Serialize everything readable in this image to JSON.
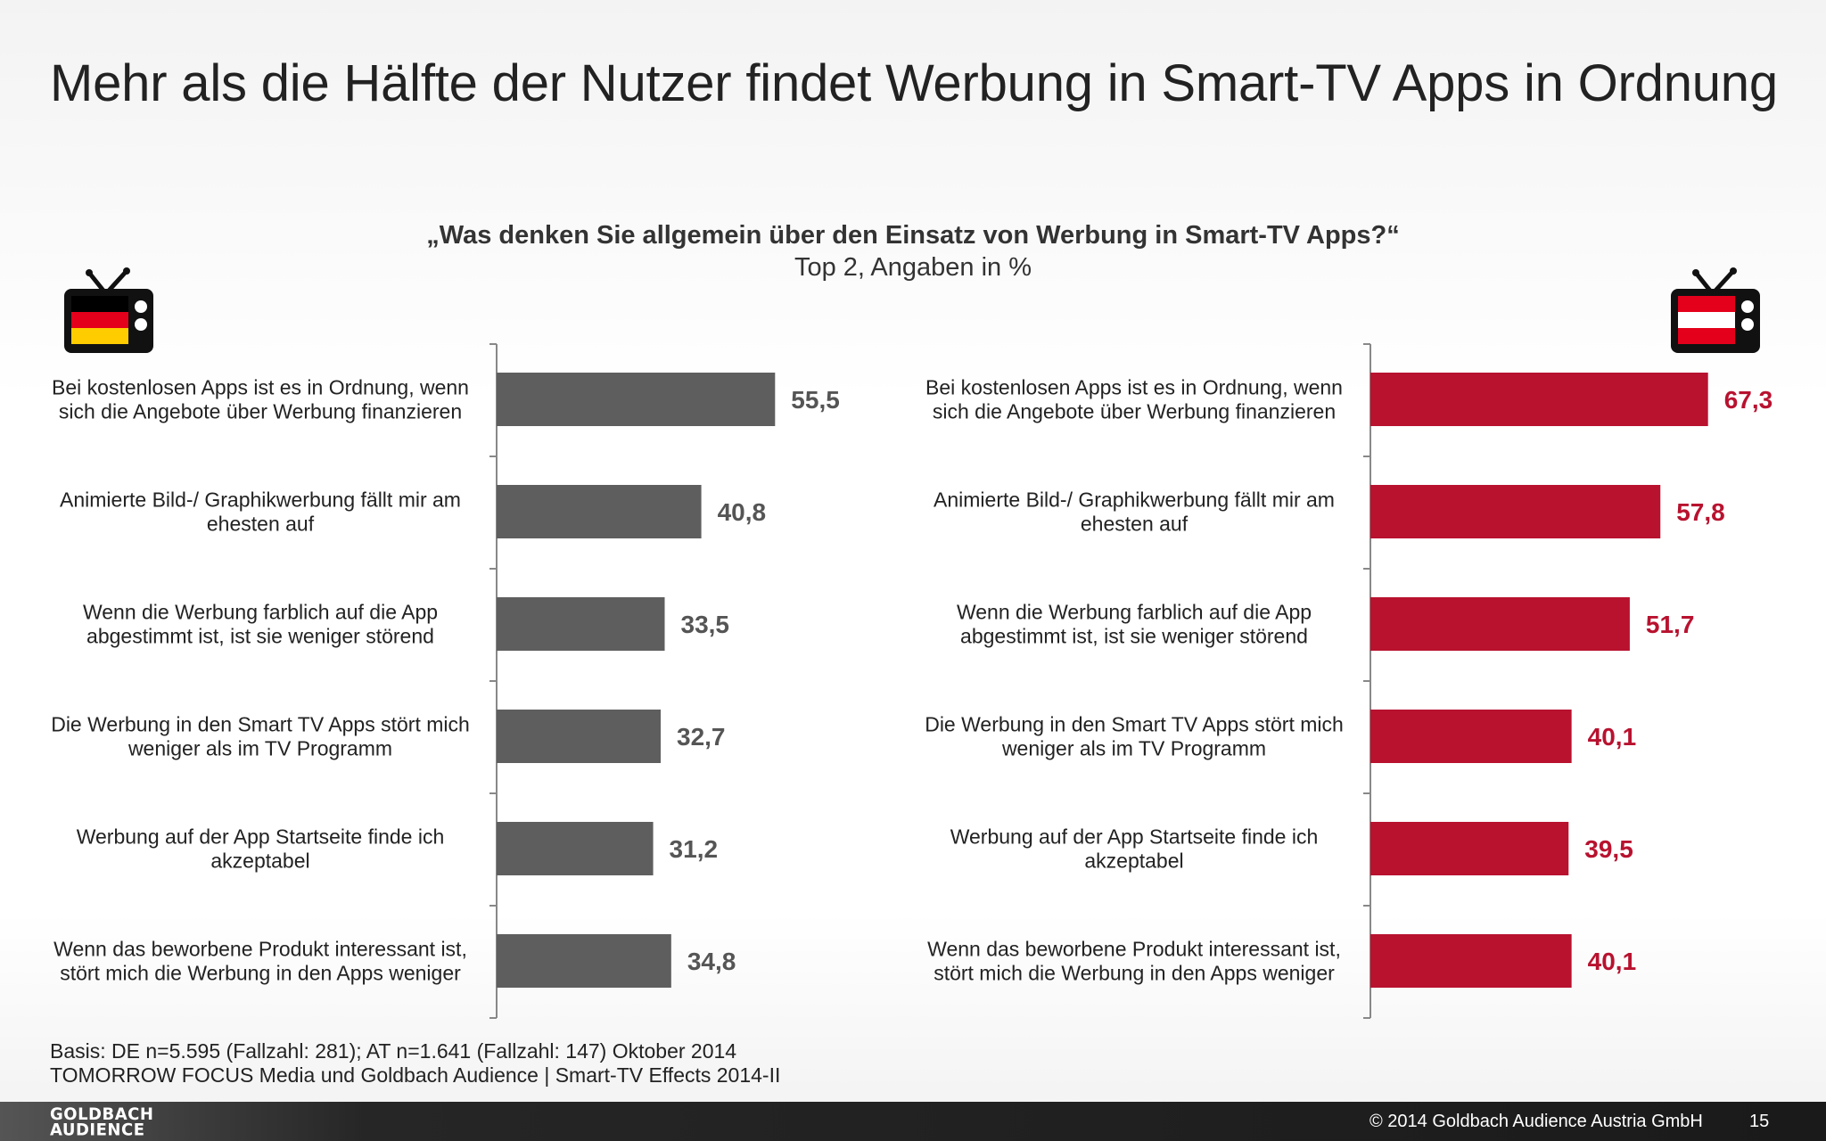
{
  "title": "Mehr als die Hälfte der Nutzer findet Werbung in Smart-TV Apps in Ordnung",
  "question": "„Was denken Sie allgemein über den Einsatz von Werbung in Smart-TV Apps?“",
  "subtitle": "Top 2, Angaben in %",
  "colors": {
    "de_bar": "#5f5e5e",
    "at_bar": "#b8122f",
    "de_label": "#555555",
    "at_label": "#b8122f"
  },
  "chart_data": [
    {
      "type": "bar",
      "orientation": "horizontal",
      "flag": "Germany",
      "categories": [
        "Bei kostenlosen Apps ist es in Ordnung, wenn\nsich die Angebote über Werbung finanzieren",
        "Animierte Bild-/ Graphikwerbung fällt mir am\nehesten auf",
        "Wenn die Werbung farblich auf die App\nabgestimmt ist, ist sie weniger störend",
        "Die Werbung in den Smart TV Apps stört mich\nweniger als im TV Programm",
        "Werbung auf der App Startseite finde ich\nakzeptabel",
        "Wenn das beworbene Produkt interessant ist,\nstört mich die Werbung in den Apps weniger"
      ],
      "values": [
        55.5,
        40.8,
        33.5,
        32.7,
        31.2,
        34.8
      ],
      "value_labels": [
        "55,5",
        "40,8",
        "33,5",
        "32,7",
        "31,2",
        "34,8"
      ],
      "xlim": [
        0,
        100
      ],
      "grid": false
    },
    {
      "type": "bar",
      "orientation": "horizontal",
      "flag": "Austria",
      "categories": [
        "Bei kostenlosen Apps ist es in Ordnung, wenn\nsich die Angebote über Werbung finanzieren",
        "Animierte Bild-/ Graphikwerbung fällt mir am\nehesten auf",
        "Wenn die Werbung farblich auf die App\nabgestimmt ist, ist sie weniger störend",
        "Die Werbung in den Smart TV Apps stört mich\nweniger als im TV Programm",
        "Werbung auf der App Startseite finde ich\nakzeptabel",
        "Wenn das beworbene Produkt interessant ist,\nstört mich die Werbung in den Apps weniger"
      ],
      "values": [
        67.3,
        57.8,
        51.7,
        40.1,
        39.5,
        40.1
      ],
      "value_labels": [
        "67,3",
        "57,8",
        "51,7",
        "40,1",
        "39,5",
        "40,1"
      ],
      "xlim": [
        0,
        100
      ],
      "grid": false
    }
  ],
  "footnotes": {
    "basis": "Basis: DE n=5.595 (Fallzahl: 281); AT n=1.641 (Fallzahl: 147) Oktober 2014",
    "source": "TOMORROW FOCUS Media und Goldbach Audience | Smart-TV Effects 2014-II"
  },
  "footer": {
    "logo_line1": "GOLDBACH",
    "logo_line2": "AUDIENCE",
    "copyright": "© 2014 Goldbach Audience Austria GmbH",
    "page_number": "15"
  }
}
